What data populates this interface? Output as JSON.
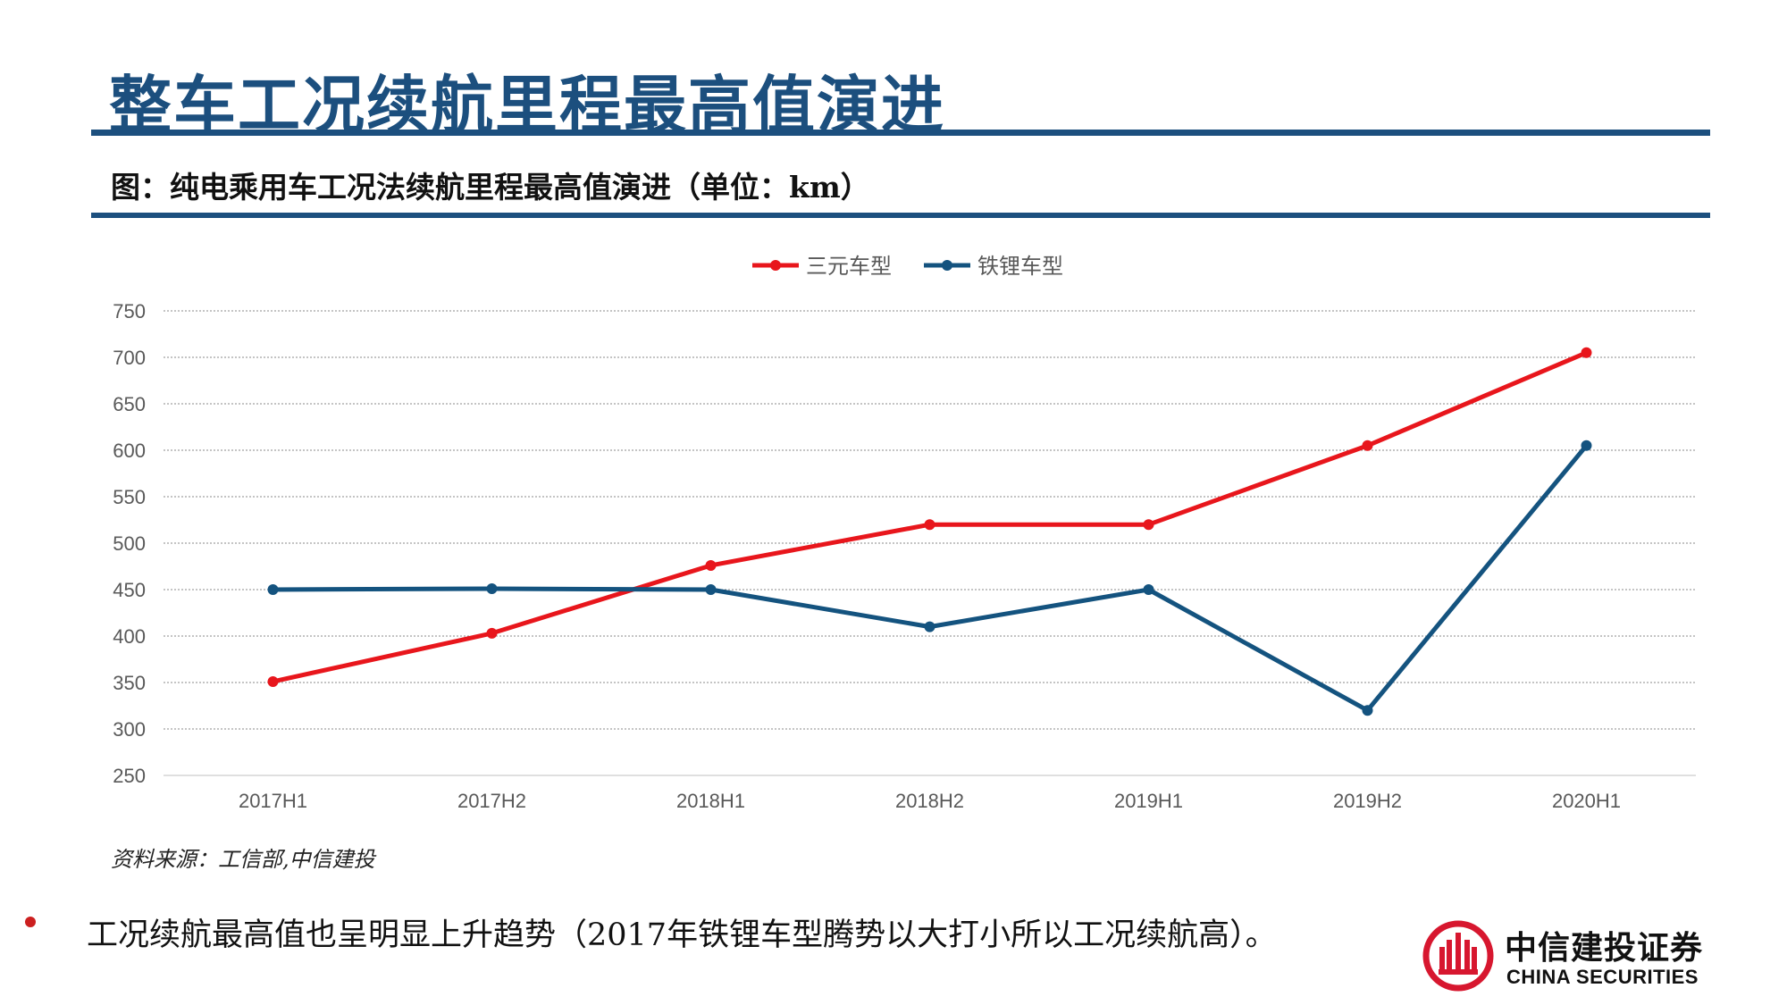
{
  "slide": {
    "title": "整车工况续航里程最高值演进",
    "chart_caption": "图：纯电乘用车工况法续航里程最高值演进（单位：km）",
    "source": "资料来源：工信部,中信建投",
    "bullet": "工况续航最高值也呈明显上升趋势（2017年铁锂车型腾势以大打小所以工况续航高）。"
  },
  "logo": {
    "cn": "中信建投证券",
    "en": "CHINA SECURITIES",
    "icon": "china-securities-logo-icon"
  },
  "colors": {
    "brand_blue": "#1c4f7e",
    "series_red": "#e8161c",
    "series_blue": "#14537f",
    "bullet_red": "#cc1f1f"
  },
  "chart_data": {
    "type": "line",
    "categories": [
      "2017H1",
      "2017H2",
      "2018H1",
      "2018H2",
      "2019H1",
      "2019H2",
      "2020H1"
    ],
    "series": [
      {
        "name": "三元车型",
        "color": "#e8161c",
        "values": [
          351,
          403,
          476,
          520,
          520,
          605,
          705
        ]
      },
      {
        "name": "铁锂车型",
        "color": "#14537f",
        "values": [
          450,
          451,
          450,
          410,
          450,
          320,
          605
        ]
      }
    ],
    "ylim": [
      250,
      750
    ],
    "yticks": [
      250,
      300,
      350,
      400,
      450,
      500,
      550,
      600,
      650,
      700,
      750
    ],
    "grid": true,
    "legend": "top-center"
  }
}
